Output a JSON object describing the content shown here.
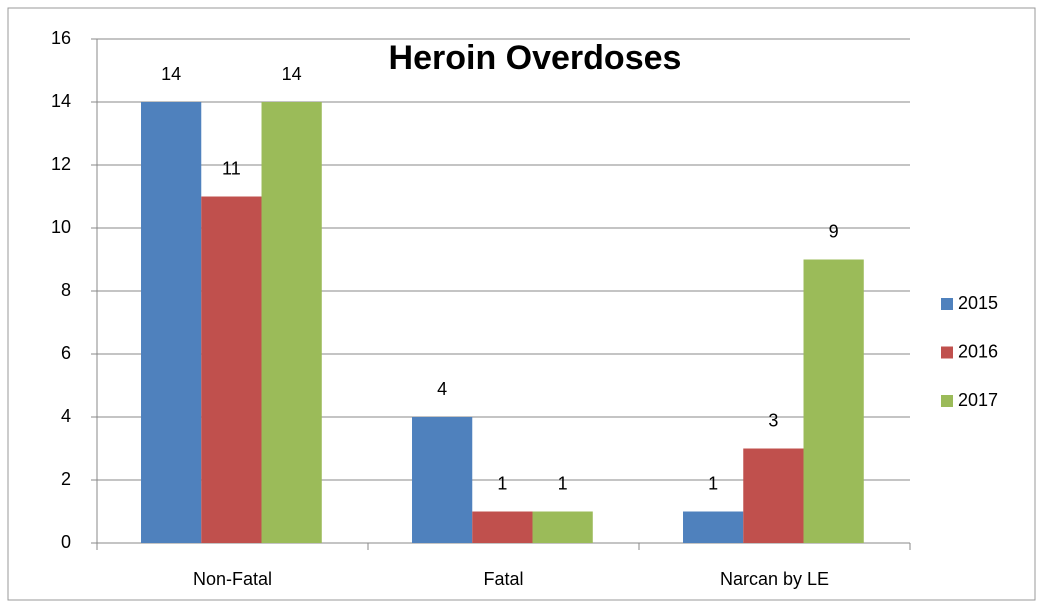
{
  "chart_data": {
    "type": "bar",
    "title": "Heroin Overdoses",
    "categories": [
      "Non-Fatal",
      "Fatal",
      "Narcan by LE"
    ],
    "series": [
      {
        "name": "2015",
        "color": "#4f81bd",
        "values": [
          14,
          4,
          1
        ]
      },
      {
        "name": "2016",
        "color": "#c0504d",
        "values": [
          11,
          1,
          3
        ]
      },
      {
        "name": "2017",
        "color": "#9bbb59",
        "values": [
          14,
          1,
          9
        ]
      }
    ],
    "ylim": [
      0,
      16
    ],
    "yticks": [
      0,
      2,
      4,
      6,
      8,
      10,
      12,
      14,
      16
    ],
    "grid": true,
    "legend": "right"
  }
}
